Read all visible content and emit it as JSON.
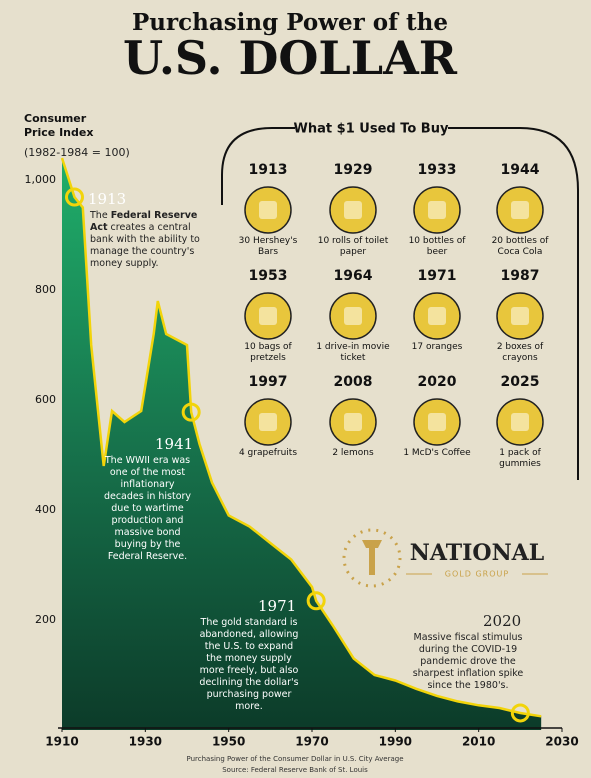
{
  "chart_data": {
    "type": "area",
    "title": "Purchasing Power of the",
    "title_main": "U.S. DOLLAR",
    "y_label": "Consumer Price Index",
    "y_sublabel": "(1982-1984 = 100)",
    "x": [
      1910,
      1913,
      1915,
      1917,
      1920,
      1922,
      1925,
      1929,
      1932,
      1933,
      1935,
      1940,
      1941,
      1943,
      1946,
      1948,
      1950,
      1955,
      1960,
      1965,
      1970,
      1971,
      1975,
      1980,
      1985,
      1990,
      1995,
      2000,
      2005,
      2010,
      2015,
      2020,
      2025
    ],
    "values": [
      1040,
      969,
      950,
      700,
      480,
      580,
      560,
      580,
      720,
      780,
      720,
      700,
      578,
      520,
      450,
      420,
      390,
      370,
      340,
      310,
      260,
      235,
      190,
      130,
      100,
      90,
      75,
      62,
      52,
      45,
      40,
      31,
      25
    ],
    "color": "#f2d40a",
    "fill": "#17734c",
    "xlim": [
      1910,
      2030
    ],
    "ylim": [
      0,
      1000
    ],
    "xticks": [
      1910,
      1930,
      1950,
      1970,
      1990,
      2010,
      2030
    ],
    "yticks": [
      200,
      400,
      600,
      800,
      {
        "value": 1000,
        "label": "1,000"
      }
    ],
    "grid": false,
    "annotations": [
      {
        "year": 1913,
        "text_parts": [
          "The ",
          "Federal Reserve Act",
          " creates a central bank with the ability to manage the country's money supply."
        ]
      },
      {
        "year": 1941,
        "text_parts": [
          "The WWII era was one of the most inflationary decades in history due to wartime production and massive bond buying by the Federal Reserve."
        ]
      },
      {
        "year": 1971,
        "text_parts": [
          "The gold standard is abandoned, allowing the U.S. to expand the money supply more freely, but also declining the dollar's purchasing power more."
        ]
      },
      {
        "year": 2020,
        "text_parts": [
          "Massive fiscal stimulus during the COVID-19 pandemic drove the sharpest inflation spike since the 1980's."
        ]
      }
    ],
    "panel": {
      "title": "What $1 Used To Buy",
      "items": [
        {
          "year": 1913,
          "label": "30 Hershey's Bars"
        },
        {
          "year": 1929,
          "label": "10 rolls of toilet paper"
        },
        {
          "year": 1933,
          "label": "10 bottles of beer"
        },
        {
          "year": 1944,
          "label": "20 bottles of Coca Cola"
        },
        {
          "year": 1953,
          "label": "10 bags of pretzels"
        },
        {
          "year": 1964,
          "label": "1 drive-in movie ticket"
        },
        {
          "year": 1971,
          "label": "17 oranges"
        },
        {
          "year": 1987,
          "label": "2 boxes of crayons"
        },
        {
          "year": 1997,
          "label": "4 grapefruits"
        },
        {
          "year": 2008,
          "label": "2 lemons"
        },
        {
          "year": 2020,
          "label": "1 McD's Coffee"
        },
        {
          "year": 2025,
          "label": "1 pack of gummies"
        }
      ]
    },
    "logo": {
      "name": "NATIONAL",
      "sub": "GOLD GROUP"
    },
    "footer": [
      "Purchasing Power of the Consumer Dollar in U.S. City Average",
      "Source: Federal Reserve Bank of St. Louis"
    ]
  }
}
